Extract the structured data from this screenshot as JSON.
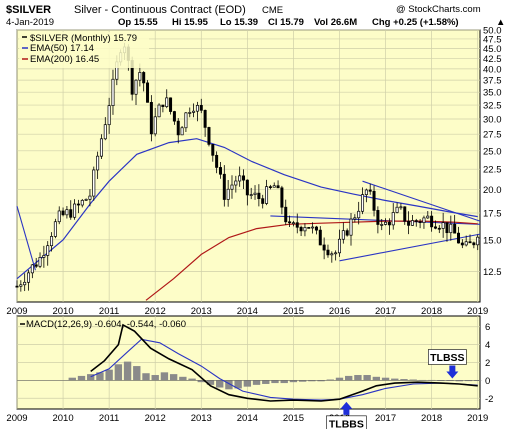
{
  "header": {
    "symbol": "$SILVER",
    "name": "Silver - Continuous Contract (EOD)",
    "exchange": "CME",
    "watermark": "@ StockCharts.com",
    "date": "4-Jan-2019",
    "open": "Op 15.55",
    "high": "Hi 15.95",
    "low": "Lo 15.39",
    "close": "Cl 15.79",
    "volume": "Vol 26.6M",
    "change": "Chg +0.25 (+1.58%)",
    "change_arrow": "▲"
  },
  "price_legend": {
    "series": "$SILVER (Monthly) 15.79",
    "ema50": "EMA(50) 17.14",
    "ema200": "EMA(200) 16.45"
  },
  "macd_legend": {
    "label": "MACD(12,26,9) -0.604, -0.544, -0.060"
  },
  "annotations": {
    "tlbss": "TLBSS",
    "tlbbs": "TLBBS"
  },
  "colors": {
    "panel_bg": "#fdfdc8",
    "grid": "#cfcfa8",
    "candle": "#000000",
    "ema50": "#2b35c4",
    "ema200": "#b01818",
    "trendline": "#2b35c4",
    "histogram": "#8a8a8a",
    "arrow": "#1f2fd8",
    "ann_box": "#ffffff"
  },
  "chart_data": [
    {
      "type": "candlestick",
      "title": "$SILVER Silver - Continuous Contract (EOD) CME",
      "interval": "monthly",
      "x_ticks": [
        "2009",
        "2010",
        "2011",
        "2012",
        "2013",
        "2014",
        "2015",
        "2016",
        "2017",
        "2018",
        "2019"
      ],
      "y_ticks": [
        12.5,
        15.0,
        17.5,
        20.0,
        22.5,
        25.0,
        27.5,
        30.0,
        32.5,
        35.0,
        37.5,
        40.0,
        42.5,
        45.0,
        47.5,
        50.0
      ],
      "y_scale": "log",
      "ylim": [
        10.5,
        50.0
      ],
      "xlim": [
        2009.0,
        2019.05
      ],
      "close": [
        {
          "t": 2009.0,
          "v": 11.5
        },
        {
          "t": 2009.5,
          "v": 13.5
        },
        {
          "t": 2009.9,
          "v": 17.0
        },
        {
          "t": 2010.3,
          "v": 18.0
        },
        {
          "t": 2010.6,
          "v": 19.5
        },
        {
          "t": 2010.9,
          "v": 29.0
        },
        {
          "t": 2011.1,
          "v": 37.0
        },
        {
          "t": 2011.3,
          "v": 48.5
        },
        {
          "t": 2011.5,
          "v": 36.0
        },
        {
          "t": 2011.7,
          "v": 40.0
        },
        {
          "t": 2011.9,
          "v": 28.0
        },
        {
          "t": 2012.2,
          "v": 34.0
        },
        {
          "t": 2012.5,
          "v": 28.0
        },
        {
          "t": 2012.8,
          "v": 33.0
        },
        {
          "t": 2013.0,
          "v": 31.0
        },
        {
          "t": 2013.3,
          "v": 23.5
        },
        {
          "t": 2013.5,
          "v": 19.5
        },
        {
          "t": 2013.8,
          "v": 21.5
        },
        {
          "t": 2014.0,
          "v": 19.5
        },
        {
          "t": 2014.3,
          "v": 19.0
        },
        {
          "t": 2014.6,
          "v": 20.5
        },
        {
          "t": 2014.9,
          "v": 16.0
        },
        {
          "t": 2015.3,
          "v": 16.5
        },
        {
          "t": 2015.6,
          "v": 14.8
        },
        {
          "t": 2015.9,
          "v": 13.8
        },
        {
          "t": 2016.3,
          "v": 17.0
        },
        {
          "t": 2016.6,
          "v": 20.0
        },
        {
          "t": 2016.9,
          "v": 16.0
        },
        {
          "t": 2017.3,
          "v": 17.8
        },
        {
          "t": 2017.5,
          "v": 16.5
        },
        {
          "t": 2017.9,
          "v": 17.0
        },
        {
          "t": 2018.2,
          "v": 16.5
        },
        {
          "t": 2018.5,
          "v": 15.5
        },
        {
          "t": 2018.7,
          "v": 14.2
        },
        {
          "t": 2018.9,
          "v": 14.7
        },
        {
          "t": 2019.0,
          "v": 15.79
        }
      ],
      "ema50": [
        {
          "t": 2009.0,
          "v": 12.0
        },
        {
          "t": 2010.0,
          "v": 15.0
        },
        {
          "t": 2010.6,
          "v": 18.5
        },
        {
          "t": 2011.0,
          "v": 21.0
        },
        {
          "t": 2011.6,
          "v": 24.5
        },
        {
          "t": 2012.3,
          "v": 26.2
        },
        {
          "t": 2012.9,
          "v": 26.8
        },
        {
          "t": 2013.5,
          "v": 25.5
        },
        {
          "t": 2014.1,
          "v": 23.5
        },
        {
          "t": 2014.8,
          "v": 21.8
        },
        {
          "t": 2015.6,
          "v": 20.3
        },
        {
          "t": 2016.3,
          "v": 19.5
        },
        {
          "t": 2017.0,
          "v": 18.8
        },
        {
          "t": 2017.7,
          "v": 18.2
        },
        {
          "t": 2018.4,
          "v": 17.6
        },
        {
          "t": 2019.0,
          "v": 17.14
        }
      ],
      "ema200": [
        {
          "t": 2011.8,
          "v": 10.6
        },
        {
          "t": 2012.4,
          "v": 12.0
        },
        {
          "t": 2013.0,
          "v": 13.8
        },
        {
          "t": 2013.6,
          "v": 15.2
        },
        {
          "t": 2014.2,
          "v": 16.0
        },
        {
          "t": 2014.9,
          "v": 16.4
        },
        {
          "t": 2015.6,
          "v": 16.5
        },
        {
          "t": 2016.3,
          "v": 16.6
        },
        {
          "t": 2017.0,
          "v": 16.7
        },
        {
          "t": 2017.8,
          "v": 16.7
        },
        {
          "t": 2018.5,
          "v": 16.6
        },
        {
          "t": 2019.0,
          "v": 16.45
        }
      ],
      "trendlines": [
        {
          "from": {
            "t": 2009.0,
            "v": 18.2
          },
          "to": {
            "t": 2009.4,
            "v": 12.6
          }
        },
        {
          "from": {
            "t": 2016.5,
            "v": 21.0
          },
          "to": {
            "t": 2019.05,
            "v": 16.7
          }
        },
        {
          "from": {
            "t": 2016.0,
            "v": 13.3
          },
          "to": {
            "t": 2019.05,
            "v": 15.5
          }
        },
        {
          "from": {
            "t": 2014.5,
            "v": 17.2
          },
          "to": {
            "t": 2019.05,
            "v": 16.4
          }
        }
      ]
    },
    {
      "type": "line",
      "title": "MACD(12,26,9) -0.604, -0.544, -0.060",
      "x_ticks": [
        "2009",
        "2010",
        "2011",
        "2012",
        "2013",
        "2014",
        "2015",
        "2016",
        "2017",
        "2018",
        "2019"
      ],
      "y_ticks": [
        6,
        4,
        2,
        0,
        -2
      ],
      "ylim": [
        -3.2,
        7.2
      ],
      "xlim": [
        2009.0,
        2019.05
      ],
      "series": [
        {
          "name": "MACD",
          "points": [
            {
              "t": 2010.6,
              "v": 1.0
            },
            {
              "t": 2010.9,
              "v": 2.2
            },
            {
              "t": 2011.2,
              "v": 4.0
            },
            {
              "t": 2011.3,
              "v": 6.2
            },
            {
              "t": 2011.55,
              "v": 5.5
            },
            {
              "t": 2011.9,
              "v": 3.6
            },
            {
              "t": 2012.3,
              "v": 2.4
            },
            {
              "t": 2012.8,
              "v": 1.2
            },
            {
              "t": 2013.2,
              "v": -0.6
            },
            {
              "t": 2013.6,
              "v": -1.6
            },
            {
              "t": 2014.0,
              "v": -2.0
            },
            {
              "t": 2014.5,
              "v": -2.3
            },
            {
              "t": 2015.0,
              "v": -2.2
            },
            {
              "t": 2015.6,
              "v": -2.3
            },
            {
              "t": 2016.0,
              "v": -2.1
            },
            {
              "t": 2016.5,
              "v": -1.2
            },
            {
              "t": 2016.8,
              "v": -0.6
            },
            {
              "t": 2017.2,
              "v": -0.3
            },
            {
              "t": 2017.7,
              "v": -0.2
            },
            {
              "t": 2018.2,
              "v": -0.3
            },
            {
              "t": 2018.6,
              "v": -0.4
            },
            {
              "t": 2019.0,
              "v": -0.604
            }
          ]
        },
        {
          "name": "Signal",
          "points": [
            {
              "t": 2010.6,
              "v": 0.4
            },
            {
              "t": 2011.0,
              "v": 1.3
            },
            {
              "t": 2011.4,
              "v": 3.2
            },
            {
              "t": 2011.7,
              "v": 4.6
            },
            {
              "t": 2012.1,
              "v": 4.2
            },
            {
              "t": 2012.5,
              "v": 3.0
            },
            {
              "t": 2013.0,
              "v": 1.6
            },
            {
              "t": 2013.4,
              "v": 0.2
            },
            {
              "t": 2013.9,
              "v": -1.2
            },
            {
              "t": 2014.5,
              "v": -1.9
            },
            {
              "t": 2015.0,
              "v": -2.1
            },
            {
              "t": 2015.6,
              "v": -2.2
            },
            {
              "t": 2016.0,
              "v": -2.1
            },
            {
              "t": 2016.5,
              "v": -1.6
            },
            {
              "t": 2017.0,
              "v": -0.9
            },
            {
              "t": 2017.6,
              "v": -0.4
            },
            {
              "t": 2018.2,
              "v": -0.3
            },
            {
              "t": 2018.6,
              "v": -0.4
            },
            {
              "t": 2019.0,
              "v": -0.544
            }
          ]
        }
      ],
      "histogram": [
        {
          "t": 2010.2,
          "v": 0.3
        },
        {
          "t": 2010.4,
          "v": 0.5
        },
        {
          "t": 2010.6,
          "v": 0.7
        },
        {
          "t": 2010.8,
          "v": 0.9
        },
        {
          "t": 2011.0,
          "v": 1.2
        },
        {
          "t": 2011.2,
          "v": 1.8
        },
        {
          "t": 2011.4,
          "v": 2.1
        },
        {
          "t": 2011.6,
          "v": 1.6
        },
        {
          "t": 2011.8,
          "v": 0.8
        },
        {
          "t": 2012.0,
          "v": 0.6
        },
        {
          "t": 2012.2,
          "v": 0.9
        },
        {
          "t": 2012.4,
          "v": 0.7
        },
        {
          "t": 2012.6,
          "v": 0.4
        },
        {
          "t": 2012.8,
          "v": 0.2
        },
        {
          "t": 2013.0,
          "v": -0.2
        },
        {
          "t": 2013.2,
          "v": -0.5
        },
        {
          "t": 2013.4,
          "v": -0.8
        },
        {
          "t": 2013.6,
          "v": -1.0
        },
        {
          "t": 2013.8,
          "v": -0.9
        },
        {
          "t": 2014.0,
          "v": -0.7
        },
        {
          "t": 2014.2,
          "v": -0.5
        },
        {
          "t": 2014.4,
          "v": -0.4
        },
        {
          "t": 2014.6,
          "v": -0.3
        },
        {
          "t": 2014.8,
          "v": -0.3
        },
        {
          "t": 2015.0,
          "v": -0.2
        },
        {
          "t": 2015.2,
          "v": -0.15
        },
        {
          "t": 2015.4,
          "v": -0.1
        },
        {
          "t": 2015.6,
          "v": -0.1
        },
        {
          "t": 2015.8,
          "v": 0.1
        },
        {
          "t": 2016.0,
          "v": 0.3
        },
        {
          "t": 2016.2,
          "v": 0.5
        },
        {
          "t": 2016.4,
          "v": 0.6
        },
        {
          "t": 2016.6,
          "v": 0.6
        },
        {
          "t": 2016.8,
          "v": 0.4
        },
        {
          "t": 2017.0,
          "v": 0.3
        },
        {
          "t": 2017.2,
          "v": 0.2
        },
        {
          "t": 2017.4,
          "v": 0.15
        },
        {
          "t": 2017.6,
          "v": 0.1
        },
        {
          "t": 2017.8,
          "v": 0.05
        },
        {
          "t": 2018.0,
          "v": 0.05
        },
        {
          "t": 2018.2,
          "v": 0.0
        },
        {
          "t": 2018.4,
          "v": -0.05
        },
        {
          "t": 2018.6,
          "v": -0.1
        },
        {
          "t": 2018.8,
          "v": -0.08
        },
        {
          "t": 2019.0,
          "v": -0.06
        }
      ],
      "markers": [
        {
          "label": "TLBSS",
          "t": 2018.45,
          "v": 0.1,
          "direction": "down"
        },
        {
          "label": "TLBBS",
          "t": 2016.15,
          "v": -2.4,
          "direction": "up"
        }
      ]
    }
  ]
}
